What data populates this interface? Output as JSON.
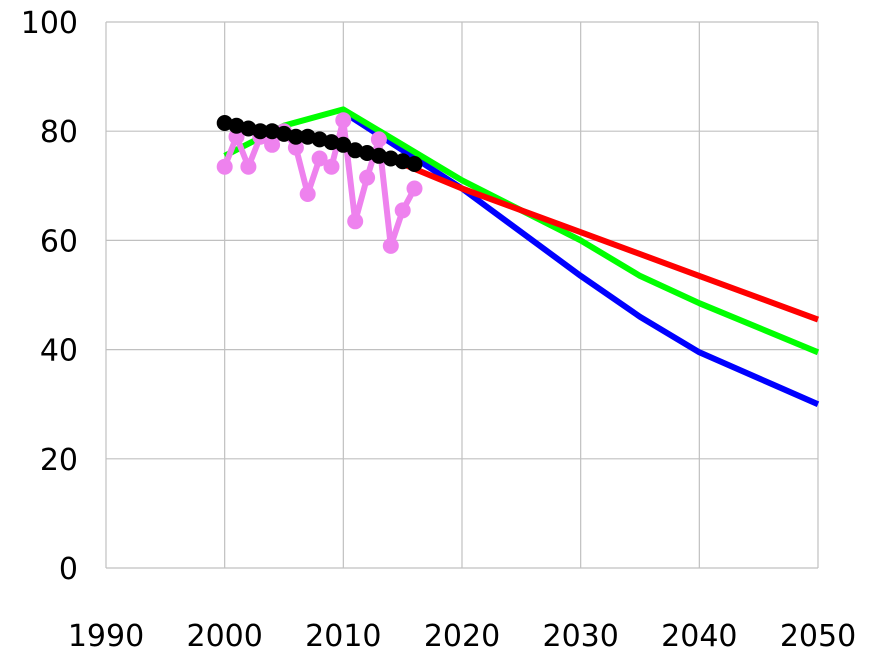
{
  "chart_data": {
    "type": "line",
    "title": "",
    "xlabel": "",
    "ylabel": "",
    "xlim": [
      1990,
      2050
    ],
    "ylim": [
      0,
      100
    ],
    "x_ticks": [
      "1990",
      "2000",
      "2010",
      "2020",
      "2030",
      "2040",
      "2050"
    ],
    "y_ticks": [
      "0",
      "20",
      "40",
      "60",
      "80",
      "100"
    ],
    "grid": true,
    "legend": "none",
    "series": [
      {
        "color": "#0000ff",
        "markers": false,
        "x": [
          2010,
          2020,
          2030,
          2035,
          2040,
          2050
        ],
        "y": [
          83.5,
          69.5,
          53.5,
          46,
          39.5,
          30
        ]
      },
      {
        "color": "#00ff00",
        "markers": false,
        "x": [
          2000,
          2005,
          2010,
          2020,
          2030,
          2035,
          2040,
          2050
        ],
        "y": [
          75.5,
          81,
          84,
          71,
          60,
          53.5,
          48.5,
          39.5
        ]
      },
      {
        "color": "#ff0000",
        "markers": false,
        "x": [
          2015,
          2020,
          2030,
          2040,
          2050
        ],
        "y": [
          74,
          69.5,
          61.5,
          53.5,
          45.5
        ]
      },
      {
        "color": "#ee82ee",
        "markers": true,
        "x": [
          2000,
          2001,
          2002,
          2003,
          2004,
          2005,
          2006,
          2007,
          2008,
          2009,
          2010,
          2011,
          2012,
          2013,
          2014,
          2015,
          2016
        ],
        "y": [
          73.5,
          79,
          73.5,
          79,
          77.5,
          80,
          77,
          68.5,
          75,
          73.5,
          82,
          63.5,
          71.5,
          78.5,
          59,
          65.5,
          69.5
        ]
      },
      {
        "color": "#000000",
        "markers": true,
        "x": [
          2000,
          2001,
          2002,
          2003,
          2004,
          2005,
          2006,
          2007,
          2008,
          2009,
          2010,
          2011,
          2012,
          2013,
          2014,
          2015,
          2016
        ],
        "y": [
          81.5,
          81,
          80.5,
          80,
          80,
          79.5,
          79,
          79,
          78.5,
          78,
          77.5,
          76.5,
          76,
          75.5,
          75,
          74.5,
          74
        ]
      }
    ]
  }
}
